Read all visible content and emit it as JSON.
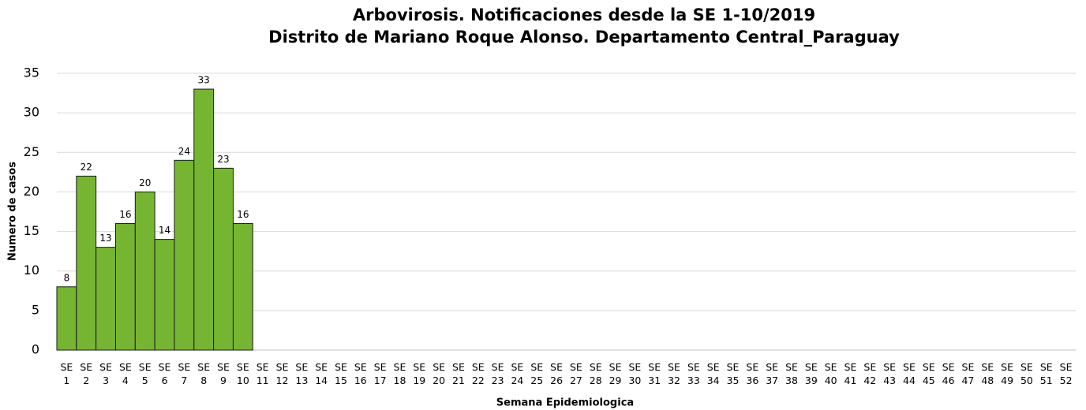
{
  "chart_data": {
    "type": "bar",
    "title": "Arbovirosis. Notificaciones desde la SE 1-10/2019",
    "subtitle": "Distrito de Mariano Roque Alonso. Departamento Central_Paraguay",
    "x_label": "Semana Epidemiologica",
    "y_label": "Numero de casos",
    "categories": [
      "SE 1",
      "SE 2",
      "SE 3",
      "SE 4",
      "SE 5",
      "SE 6",
      "SE 7",
      "SE 8",
      "SE 9",
      "SE 10",
      "SE 11",
      "SE 12",
      "SE 13",
      "SE 14",
      "SE 15",
      "SE 16",
      "SE 17",
      "SE 18",
      "SE 19",
      "SE 20",
      "SE 21",
      "SE 22",
      "SE 23",
      "SE 24",
      "SE 25",
      "SE 26",
      "SE 27",
      "SE 28",
      "SE 29",
      "SE 30",
      "SE 31",
      "SE 32",
      "SE 33",
      "SE 34",
      "SE 35",
      "SE 36",
      "SE 37",
      "SE 38",
      "SE 39",
      "SE 40",
      "SE 41",
      "SE 42",
      "SE 43",
      "SE 44",
      "SE 45",
      "SE 46",
      "SE 47",
      "SE 48",
      "SE 49",
      "SE 50",
      "SE 51",
      "SE 52"
    ],
    "values": [
      8,
      22,
      13,
      16,
      20,
      14,
      24,
      33,
      23,
      16,
      null,
      null,
      null,
      null,
      null,
      null,
      null,
      null,
      null,
      null,
      null,
      null,
      null,
      null,
      null,
      null,
      null,
      null,
      null,
      null,
      null,
      null,
      null,
      null,
      null,
      null,
      null,
      null,
      null,
      null,
      null,
      null,
      null,
      null,
      null,
      null,
      null,
      null,
      null,
      null,
      null,
      null
    ],
    "color": "#76b531",
    "ylim": [
      0,
      35
    ],
    "yticks": [
      0,
      5,
      10,
      15,
      20,
      25,
      30,
      35
    ],
    "grid": true
  }
}
